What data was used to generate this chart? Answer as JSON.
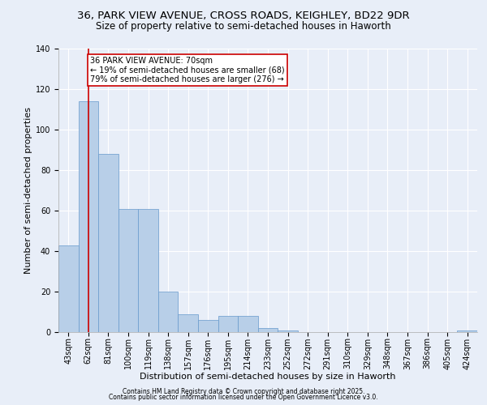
{
  "title1": "36, PARK VIEW AVENUE, CROSS ROADS, KEIGHLEY, BD22 9DR",
  "title2": "Size of property relative to semi-detached houses in Haworth",
  "xlabel": "Distribution of semi-detached houses by size in Haworth",
  "ylabel": "Number of semi-detached properties",
  "categories": [
    "43sqm",
    "62sqm",
    "81sqm",
    "100sqm",
    "119sqm",
    "138sqm",
    "157sqm",
    "176sqm",
    "195sqm",
    "214sqm",
    "233sqm",
    "252sqm",
    "272sqm",
    "291sqm",
    "310sqm",
    "329sqm",
    "348sqm",
    "367sqm",
    "386sqm",
    "405sqm",
    "424sqm"
  ],
  "values": [
    43,
    114,
    88,
    61,
    61,
    20,
    9,
    6,
    8,
    8,
    2,
    1,
    0,
    0,
    0,
    0,
    0,
    0,
    0,
    0,
    1
  ],
  "bar_color": "#b8cfe8",
  "bar_edge_color": "#6699cc",
  "background_color": "#e8eef8",
  "grid_color": "#ffffff",
  "annotation_text": "36 PARK VIEW AVENUE: 70sqm\n← 19% of semi-detached houses are smaller (68)\n79% of semi-detached houses are larger (276) →",
  "annotation_box_color": "#ffffff",
  "annotation_box_edge": "#cc0000",
  "vline_x": 1,
  "vline_color": "#cc0000",
  "ylim": [
    0,
    140
  ],
  "yticks": [
    0,
    20,
    40,
    60,
    80,
    100,
    120,
    140
  ],
  "footer1": "Contains HM Land Registry data © Crown copyright and database right 2025.",
  "footer2": "Contains public sector information licensed under the Open Government Licence v3.0.",
  "title_fontsize": 9.5,
  "subtitle_fontsize": 8.5,
  "axis_label_fontsize": 8,
  "tick_fontsize": 7,
  "annotation_fontsize": 7,
  "footer_fontsize": 5.5
}
